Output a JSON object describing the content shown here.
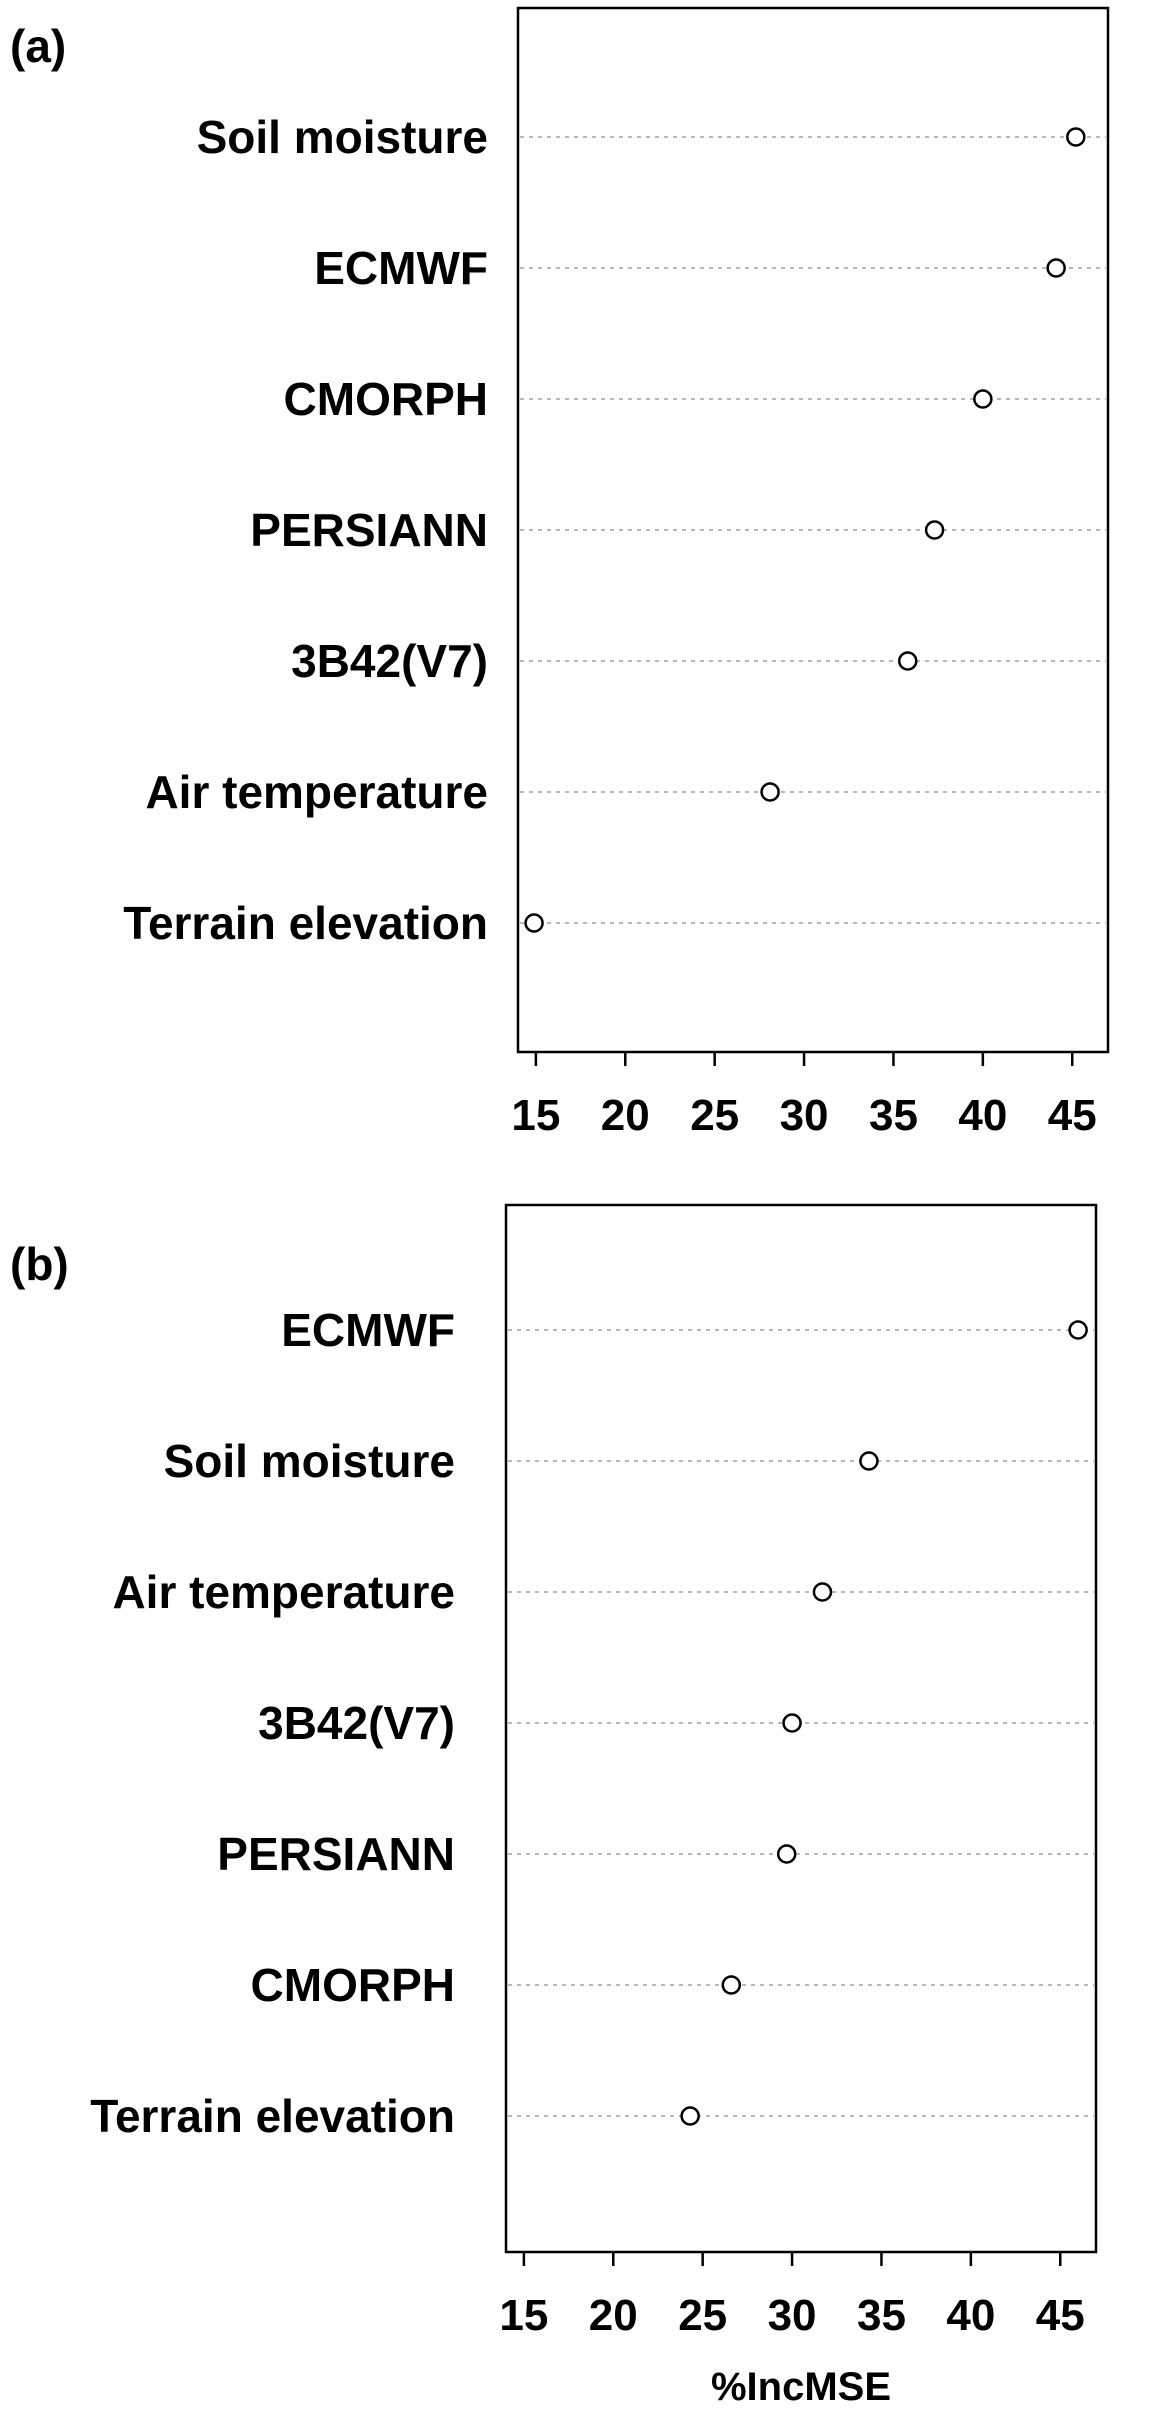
{
  "chart_data": [
    {
      "type": "scatter",
      "panel_label": "(a)",
      "title": "",
      "xlabel": "",
      "ylabel": "",
      "xlim": [
        14,
        47
      ],
      "xticks": [
        "15",
        "20",
        "25",
        "30",
        "35",
        "40",
        "45"
      ],
      "grid": "dotted horizontal guides per category",
      "categories": [
        "Soil moisture",
        "ECMWF",
        "CMORPH",
        "PERSIANN",
        "3B42(V7)",
        "Air temperature",
        "Terrain elevation"
      ],
      "values": [
        45.2,
        44.1,
        40.0,
        37.3,
        35.8,
        28.1,
        14.9
      ]
    },
    {
      "type": "scatter",
      "panel_label": "(b)",
      "title": "",
      "xlabel": "%IncMSE",
      "ylabel": "",
      "xlim": [
        14,
        47
      ],
      "xticks": [
        "15",
        "20",
        "25",
        "30",
        "35",
        "40",
        "45"
      ],
      "grid": "dotted horizontal guides per category",
      "categories": [
        "ECMWF",
        "Soil moisture",
        "Air temperature",
        "3B42(V7)",
        "PERSIANN",
        "CMORPH",
        "Terrain elevation"
      ],
      "values": [
        46.0,
        34.3,
        31.7,
        30.0,
        29.7,
        26.6,
        24.3
      ]
    }
  ]
}
